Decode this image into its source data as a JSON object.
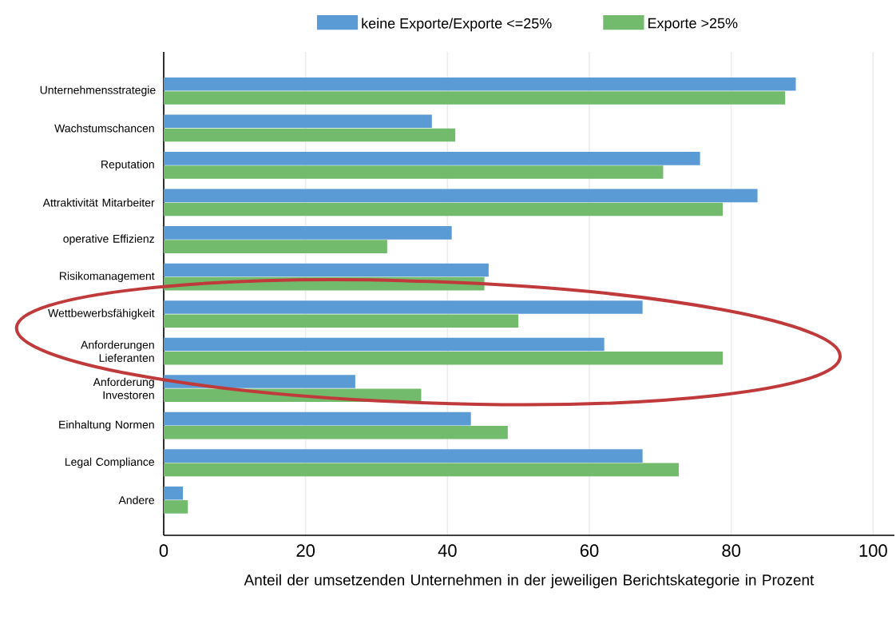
{
  "chart_data": {
    "type": "bar",
    "orientation": "horizontal",
    "xlabel": "Anteil der umsetzenden Unternehmen in der jeweiligen Berichtskategorie in Prozent",
    "categories": [
      "Unternehmensstrategie",
      "Wachstumschancen",
      "Reputation",
      "Attraktivität Mitarbeiter",
      "operative Effizienz",
      "Risikomanagement",
      "Wettbewerbsfähigkeit",
      "Anforderungen Lieferanten",
      "Anforderung Investoren",
      "Einhaltung Normen",
      "Legal Compliance",
      "Andere"
    ],
    "series": [
      {
        "name": "keine Exporte/Exporte <=25%",
        "color": "#5b9bd5",
        "values": [
          89.1,
          37.8,
          75.6,
          83.7,
          40.6,
          45.8,
          67.5,
          62.1,
          27.0,
          43.3,
          67.5,
          2.7
        ]
      },
      {
        "name": "Exporte >25%",
        "color": "#72bb6c",
        "values": [
          87.6,
          41.1,
          70.4,
          78.8,
          31.5,
          45.2,
          50.0,
          78.8,
          36.3,
          48.5,
          72.6,
          3.4
        ]
      }
    ],
    "xlim": [
      0,
      103
    ],
    "xticks": [
      0,
      20,
      40,
      60,
      80,
      100
    ],
    "grid": "x",
    "legend": "top"
  }
}
